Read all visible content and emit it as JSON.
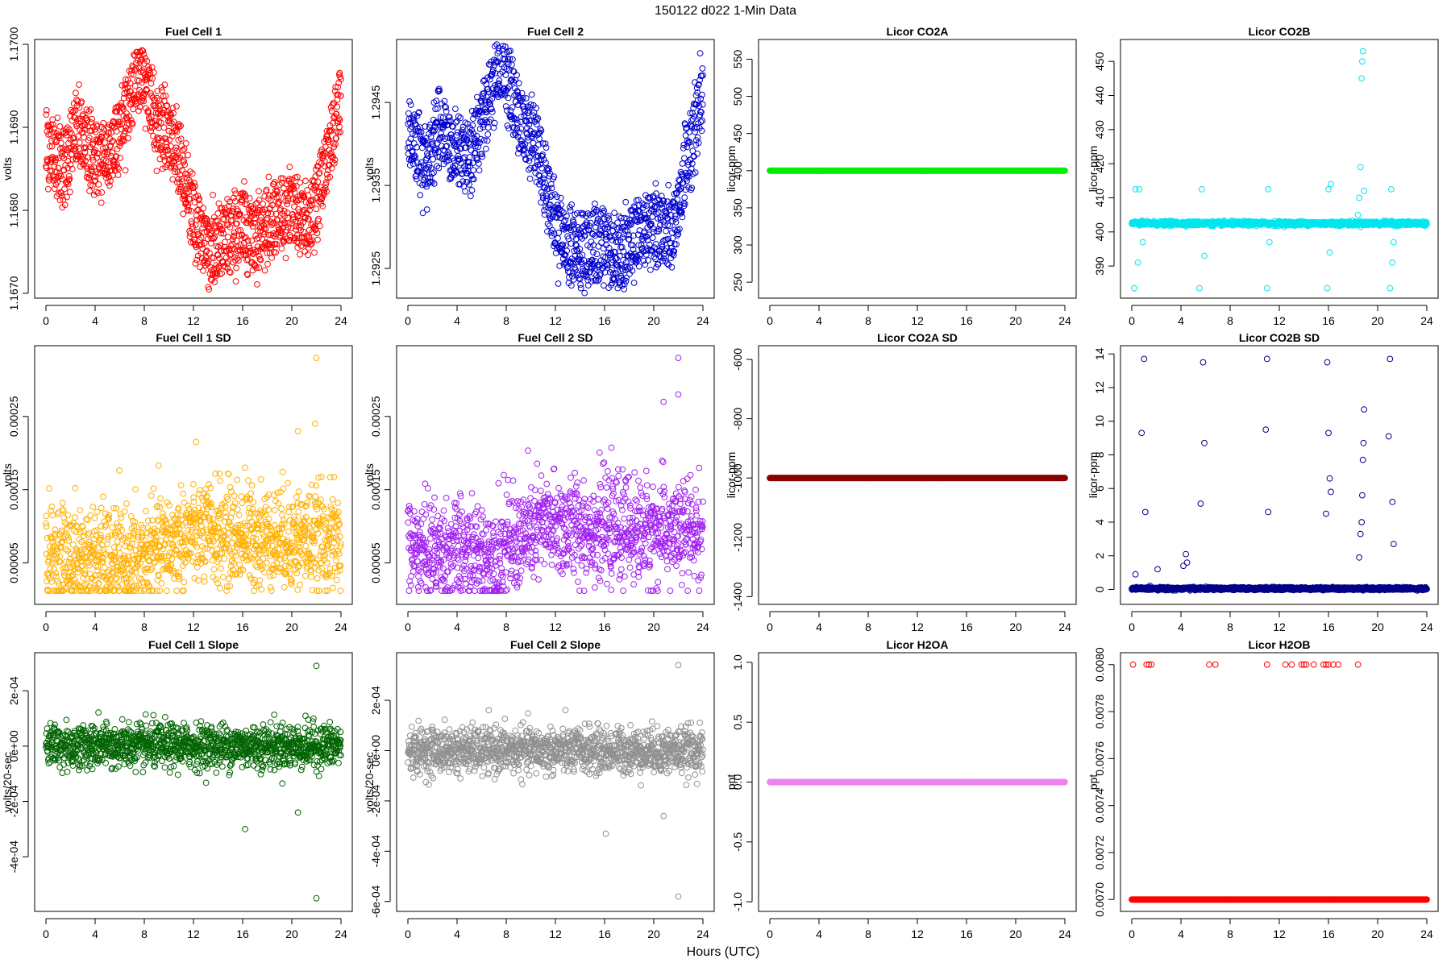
{
  "figure": {
    "suptitle": "150122    d022    1-Min Data",
    "xlabel": "Hours (UTC)"
  },
  "chart_data": [
    {
      "type": "scatter",
      "title": "Fuel Cell 1",
      "ylabel": "volts",
      "xlim": [
        0,
        24
      ],
      "ylim": [
        1.167,
        1.17
      ],
      "yticks": [
        "1.1670",
        "1.1680",
        "1.1690",
        "1.1700"
      ],
      "ytickvals": [
        1.167,
        1.168,
        1.169,
        1.17
      ],
      "color": "#ff0000",
      "shape": "wave",
      "trend": [
        [
          0,
          1.1688
        ],
        [
          1.5,
          1.1685
        ],
        [
          2.5,
          1.169
        ],
        [
          3.5,
          1.1687
        ],
        [
          5,
          1.1686
        ],
        [
          6.5,
          1.1692
        ],
        [
          7.6,
          1.1697
        ],
        [
          9,
          1.1691
        ],
        [
          10.5,
          1.1688
        ],
        [
          12,
          1.1679
        ],
        [
          13.5,
          1.1675
        ],
        [
          16,
          1.1678
        ],
        [
          17,
          1.1677
        ],
        [
          18.5,
          1.1679
        ],
        [
          20,
          1.168
        ],
        [
          21.5,
          1.1678
        ],
        [
          23,
          1.1687
        ],
        [
          24,
          1.1694
        ]
      ],
      "spread": 0.00025
    },
    {
      "type": "scatter",
      "title": "Fuel Cell 2",
      "ylabel": "volts",
      "xlim": [
        0,
        24
      ],
      "ylim": [
        1.2922,
        1.2952
      ],
      "yticks": [
        "1.2925",
        "1.2935",
        "1.2945"
      ],
      "ytickvals": [
        1.2925,
        1.2935,
        1.2945
      ],
      "color": "#0000cd",
      "shape": "wave",
      "trend": [
        [
          0,
          1.2942
        ],
        [
          1.5,
          1.2937
        ],
        [
          2.5,
          1.2943
        ],
        [
          3.5,
          1.2939
        ],
        [
          5,
          1.2938
        ],
        [
          6.5,
          1.2945
        ],
        [
          7.6,
          1.295
        ],
        [
          9,
          1.2943
        ],
        [
          10.5,
          1.294
        ],
        [
          12,
          1.293
        ],
        [
          13.5,
          1.2927
        ],
        [
          16,
          1.2928
        ],
        [
          17,
          1.2926
        ],
        [
          18.5,
          1.2929
        ],
        [
          20,
          1.293
        ],
        [
          21.5,
          1.2929
        ],
        [
          23,
          1.294
        ],
        [
          24,
          1.2946
        ]
      ],
      "spread": 0.00025
    },
    {
      "type": "scatter",
      "title": "Licor CO2A",
      "ylabel": "licor-ppm",
      "xlim": [
        0,
        24
      ],
      "ylim": [
        235,
        570
      ],
      "yticks": [
        "250",
        "300",
        "350",
        "400",
        "450",
        "500",
        "550"
      ],
      "ytickvals": [
        250,
        300,
        350,
        400,
        450,
        500,
        550
      ],
      "color": "#00ee00",
      "shape": "flat",
      "level": 400
    },
    {
      "type": "scatter",
      "title": "Licor CO2B",
      "ylabel": "licor-ppm",
      "xlim": [
        0,
        24
      ],
      "ylim": [
        382,
        455
      ],
      "yticks": [
        "390",
        "400",
        "410",
        "420",
        "430",
        "440",
        "450"
      ],
      "ytickvals": [
        390,
        400,
        410,
        420,
        430,
        440,
        450
      ],
      "color": "#00e5ee",
      "shape": "flatnoise",
      "level": 402.5,
      "spread": 0.6,
      "spikes": [
        [
          0.2,
          383.5
        ],
        [
          0.3,
          412.5
        ],
        [
          0.5,
          391
        ],
        [
          0.6,
          412.5
        ],
        [
          0.9,
          397
        ],
        [
          5.5,
          383.5
        ],
        [
          5.7,
          412.5
        ],
        [
          5.9,
          393
        ],
        [
          11,
          383.5
        ],
        [
          11.1,
          412.5
        ],
        [
          11.2,
          397
        ],
        [
          15.9,
          383.5
        ],
        [
          16,
          412.5
        ],
        [
          16.1,
          394
        ],
        [
          16.2,
          414
        ],
        [
          18.4,
          405
        ],
        [
          18.5,
          410
        ],
        [
          18.6,
          419
        ],
        [
          18.7,
          445
        ],
        [
          18.75,
          450
        ],
        [
          18.8,
          453
        ],
        [
          18.9,
          412
        ],
        [
          21,
          383.5
        ],
        [
          21.1,
          412.5
        ],
        [
          21.2,
          391
        ],
        [
          21.3,
          397
        ]
      ]
    },
    {
      "type": "scatter",
      "title": "Fuel Cell 1 SD",
      "ylabel": "volts",
      "xlim": [
        0,
        24
      ],
      "ylim": [
        0,
        0.00034
      ],
      "yticks": [
        "0.00005",
        "0.00015",
        "0.00025"
      ],
      "ytickvals": [
        5e-05,
        0.00015,
        0.00025
      ],
      "color": "#ffb000",
      "shape": "noisy",
      "trend": [
        [
          0,
          6e-05
        ],
        [
          7,
          5e-05
        ],
        [
          12,
          9e-05
        ],
        [
          24,
          8e-05
        ]
      ],
      "spread": 3.5e-05,
      "spikes": [
        [
          20.5,
          0.00023
        ],
        [
          21.9,
          0.00024
        ],
        [
          22,
          0.00033
        ],
        [
          16.2,
          0.00018
        ]
      ]
    },
    {
      "type": "scatter",
      "title": "Fuel Cell 2 SD",
      "ylabel": "volts",
      "xlim": [
        0,
        24
      ],
      "ylim": [
        0,
        0.00034
      ],
      "yticks": [
        "0.00005",
        "0.00015",
        "0.00025"
      ],
      "ytickvals": [
        5e-05,
        0.00015,
        0.00025
      ],
      "color": "#a020f0",
      "shape": "noisy",
      "trend": [
        [
          0,
          7e-05
        ],
        [
          7,
          6e-05
        ],
        [
          11,
          0.0001
        ],
        [
          24,
          9e-05
        ]
      ],
      "spread": 3.5e-05,
      "spikes": [
        [
          20.8,
          0.00027
        ],
        [
          22,
          0.00028
        ],
        [
          22,
          0.00033
        ],
        [
          7.8,
          0.00017
        ]
      ]
    },
    {
      "type": "scatter",
      "title": "Licor CO2A SD",
      "ylabel": "licor-ppm",
      "xlim": [
        0,
        24
      ],
      "ylim": [
        -1410,
        -570
      ],
      "yticks": [
        "-1400",
        "-1200",
        "-1000",
        "-800",
        "-600"
      ],
      "ytickvals": [
        -1400,
        -1200,
        -1000,
        -800,
        -600
      ],
      "color": "#8b0000",
      "shape": "flat",
      "level": -1000
    },
    {
      "type": "scatter",
      "title": "Licor CO2B SD",
      "ylabel": "licor-ppm",
      "xlim": [
        0,
        24
      ],
      "ylim": [
        -0.6,
        14.2
      ],
      "yticks": [
        "0",
        "2",
        "4",
        "6",
        "8",
        "10",
        "12",
        "14"
      ],
      "ytickvals": [
        0,
        2,
        4,
        6,
        8,
        10,
        12,
        14
      ],
      "color": "#00008b",
      "shape": "flatnoise",
      "level": 0.05,
      "spread": 0.08,
      "spikes": [
        [
          0.3,
          0.9
        ],
        [
          0.8,
          9.3
        ],
        [
          1,
          13.7
        ],
        [
          1.1,
          4.6
        ],
        [
          2.1,
          1.2
        ],
        [
          4.2,
          1.4
        ],
        [
          4.4,
          2.1
        ],
        [
          4.5,
          1.6
        ],
        [
          5.6,
          5.1
        ],
        [
          5.8,
          13.5
        ],
        [
          5.9,
          8.7
        ],
        [
          10.9,
          9.5
        ],
        [
          11,
          13.7
        ],
        [
          11.1,
          4.6
        ],
        [
          15.8,
          4.5
        ],
        [
          15.9,
          13.5
        ],
        [
          16,
          9.3
        ],
        [
          16.1,
          6.6
        ],
        [
          16.2,
          5.8
        ],
        [
          18.5,
          1.9
        ],
        [
          18.6,
          3.3
        ],
        [
          18.7,
          4
        ],
        [
          18.75,
          5.6
        ],
        [
          18.8,
          7.7
        ],
        [
          18.85,
          8.7
        ],
        [
          18.9,
          10.7
        ],
        [
          20.9,
          9.1
        ],
        [
          21,
          13.7
        ],
        [
          21.2,
          5.2
        ],
        [
          21.3,
          2.7
        ]
      ]
    },
    {
      "type": "scatter",
      "title": "Fuel Cell 1 Slope",
      "ylabel": "volts/20-sec",
      "xlim": [
        0,
        24
      ],
      "ylim": [
        -0.00058,
        0.00032
      ],
      "yticks": [
        "-4e-04",
        "-2e-04",
        "0e+00",
        "2e-04"
      ],
      "ytickvals": [
        -0.0004,
        -0.0002,
        0,
        0.0002
      ],
      "color": "#006400",
      "shape": "noisy",
      "trend": [
        [
          0,
          0
        ],
        [
          24,
          0
        ]
      ],
      "spread": 4e-05,
      "spikes": [
        [
          16.2,
          -0.0003
        ],
        [
          22,
          -0.00055
        ],
        [
          22,
          0.00029
        ],
        [
          20.5,
          -0.00024
        ]
      ]
    },
    {
      "type": "scatter",
      "title": "Fuel Cell 2 Slope",
      "ylabel": "volts/20-sec",
      "xlim": [
        0,
        24
      ],
      "ylim": [
        -0.00062,
        0.00037
      ],
      "yticks": [
        "-6e-04",
        "-4e-04",
        "-2e-04",
        "0e+00",
        "2e-04"
      ],
      "ytickvals": [
        -0.0006,
        -0.0004,
        -0.0002,
        0,
        0.0002
      ],
      "color": "#909090",
      "shape": "noisy",
      "trend": [
        [
          0,
          0
        ],
        [
          24,
          0
        ]
      ],
      "spread": 4.5e-05,
      "spikes": [
        [
          16.1,
          -0.00033
        ],
        [
          22,
          -0.00058
        ],
        [
          22,
          0.00034
        ],
        [
          20.8,
          -0.00026
        ]
      ]
    },
    {
      "type": "scatter",
      "title": "Licor H2OA",
      "ylabel": "ppt",
      "xlim": [
        0,
        24
      ],
      "ylim": [
        -1.04,
        1.04
      ],
      "yticks": [
        "-1.0",
        "-0.5",
        "0.0",
        "0.5",
        "1.0"
      ],
      "ytickvals": [
        -1,
        -0.5,
        0,
        0.5,
        1
      ],
      "color": "#ee82ee",
      "shape": "flat",
      "level": 0
    },
    {
      "type": "scatter",
      "title": "Licor H2OB",
      "ylabel": "ppt",
      "xlim": [
        0,
        24
      ],
      "ylim": [
        0.00697,
        0.00803
      ],
      "yticks": [
        "0.0070",
        "0.0072",
        "0.0074",
        "0.0076",
        "0.0078",
        "0.0080"
      ],
      "ytickvals": [
        0.007,
        0.0072,
        0.0074,
        0.0076,
        0.0078,
        0.008
      ],
      "color": "#ff0000",
      "shape": "flat",
      "level": 0.007,
      "spikes": [
        [
          0.1,
          0.008
        ],
        [
          1.2,
          0.008
        ],
        [
          1.4,
          0.008
        ],
        [
          1.6,
          0.008
        ],
        [
          6.3,
          0.008
        ],
        [
          6.8,
          0.008
        ],
        [
          11,
          0.008
        ],
        [
          12.5,
          0.008
        ],
        [
          13,
          0.008
        ],
        [
          13.8,
          0.008
        ],
        [
          14,
          0.008
        ],
        [
          14.2,
          0.008
        ],
        [
          14.8,
          0.008
        ],
        [
          15.6,
          0.008
        ],
        [
          15.8,
          0.008
        ],
        [
          16,
          0.008
        ],
        [
          16.4,
          0.008
        ],
        [
          16.8,
          0.008
        ],
        [
          18.4,
          0.008
        ]
      ]
    }
  ]
}
